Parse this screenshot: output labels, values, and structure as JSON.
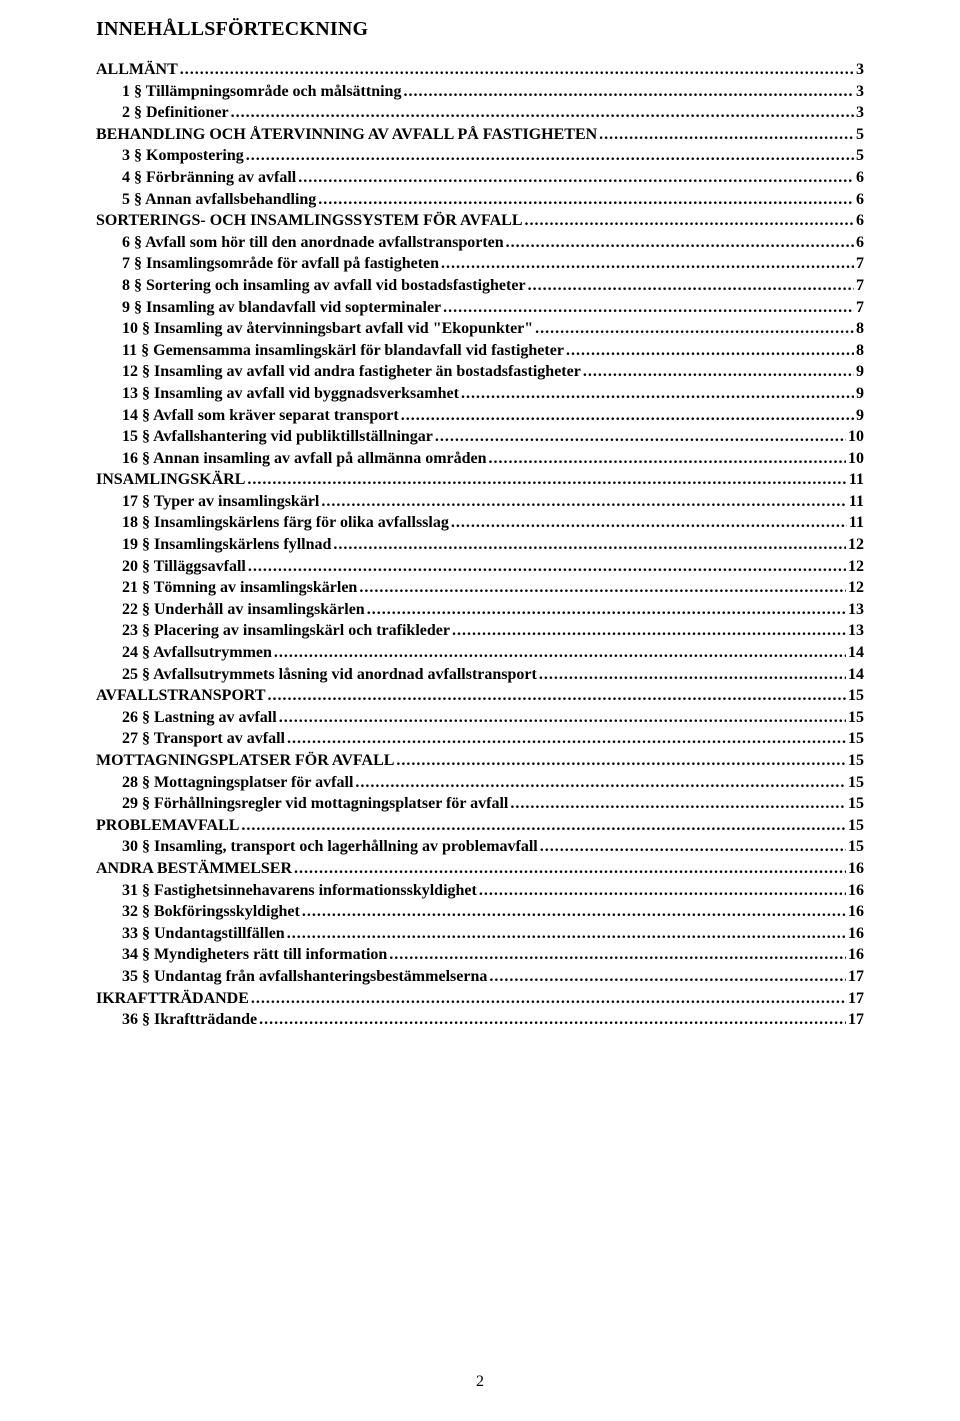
{
  "title": "INNEHÅLLSFÖRTECKNING",
  "page_number": "2",
  "toc": [
    {
      "level": 1,
      "label": "ALLMÄNT",
      "page": "3"
    },
    {
      "level": 2,
      "label": "1 § Tillämpningsområde och målsättning",
      "page": "3"
    },
    {
      "level": 2,
      "label": "2 § Definitioner",
      "page": "3"
    },
    {
      "level": 1,
      "label": "BEHANDLING OCH ÅTERVINNING AV AVFALL PÅ FASTIGHETEN",
      "page": "5"
    },
    {
      "level": 2,
      "label": "3 § Kompostering",
      "page": "5"
    },
    {
      "level": 2,
      "label": "4 § Förbränning av avfall",
      "page": "6"
    },
    {
      "level": 2,
      "label": "5 § Annan avfallsbehandling",
      "page": "6"
    },
    {
      "level": 1,
      "label": "SORTERINGS- OCH INSAMLINGSSYSTEM FÖR AVFALL",
      "page": "6"
    },
    {
      "level": 2,
      "label": "6 § Avfall som hör till den anordnade avfallstransporten",
      "page": "6"
    },
    {
      "level": 2,
      "label": "7 § Insamlingsområde för avfall på fastigheten",
      "page": "7"
    },
    {
      "level": 2,
      "label": "8 § Sortering och insamling av avfall vid bostadsfastigheter",
      "page": "7"
    },
    {
      "level": 2,
      "label": "9 § Insamling av blandavfall vid sopterminaler",
      "page": "7"
    },
    {
      "level": 2,
      "label": "10 § Insamling av återvinningsbart avfall vid \"Ekopunkter\"",
      "page": "8"
    },
    {
      "level": 2,
      "label": "11 § Gemensamma insamlingskärl för blandavfall vid fastigheter",
      "page": "8"
    },
    {
      "level": 2,
      "label": "12 § Insamling av avfall vid andra fastigheter än bostadsfastigheter",
      "page": "9"
    },
    {
      "level": 2,
      "label": "13 § Insamling av avfall vid byggnadsverksamhet",
      "page": "9"
    },
    {
      "level": 2,
      "label": "14 § Avfall som kräver separat transport",
      "page": "9"
    },
    {
      "level": 2,
      "label": "15 § Avfallshantering vid publiktillställningar",
      "page": "10"
    },
    {
      "level": 2,
      "label": "16 § Annan insamling av avfall på allmänna områden",
      "page": "10"
    },
    {
      "level": 1,
      "label": "INSAMLINGSKÄRL",
      "page": "11"
    },
    {
      "level": 2,
      "label": "17 § Typer av insamlingskärl",
      "page": "11"
    },
    {
      "level": 2,
      "label": "18 § Insamlingskärlens färg för olika avfallsslag",
      "page": "11"
    },
    {
      "level": 2,
      "label": "19 § Insamlingskärlens fyllnad",
      "page": "12"
    },
    {
      "level": 2,
      "label": "20 § Tilläggsavfall",
      "page": "12"
    },
    {
      "level": 2,
      "label": "21 § Tömning av insamlingskärlen",
      "page": "12"
    },
    {
      "level": 2,
      "label": "22 § Underhåll av insamlingskärlen",
      "page": "13"
    },
    {
      "level": 2,
      "label": "23 § Placering av insamlingskärl och trafikleder",
      "page": "13"
    },
    {
      "level": 2,
      "label": "24 § Avfallsutrymmen",
      "page": "14"
    },
    {
      "level": 2,
      "label": "25 § Avfallsutrymmets låsning vid anordnad avfallstransport",
      "page": "14"
    },
    {
      "level": 1,
      "label": "AVFALLSTRANSPORT",
      "page": "15"
    },
    {
      "level": 2,
      "label": "26 § Lastning av avfall",
      "page": "15"
    },
    {
      "level": 2,
      "label": "27 § Transport av avfall",
      "page": "15"
    },
    {
      "level": 1,
      "label": "MOTTAGNINGSPLATSER FÖR AVFALL",
      "page": "15"
    },
    {
      "level": 2,
      "label": "28 § Mottagningsplatser för avfall",
      "page": "15"
    },
    {
      "level": 2,
      "label": "29 § Förhållningsregler vid mottagningsplatser för avfall",
      "page": "15"
    },
    {
      "level": 1,
      "label": "PROBLEMAVFALL",
      "page": "15"
    },
    {
      "level": 2,
      "label": "30 § Insamling, transport och lagerhållning av problemavfall",
      "page": "15"
    },
    {
      "level": 1,
      "label": "ANDRA BESTÄMMELSER",
      "page": "16"
    },
    {
      "level": 2,
      "label": "31 § Fastighetsinnehavarens informationsskyldighet",
      "page": "16"
    },
    {
      "level": 2,
      "label": "32 § Bokföringsskyldighet",
      "page": "16"
    },
    {
      "level": 2,
      "label": "33 § Undantagstillfällen",
      "page": "16"
    },
    {
      "level": 2,
      "label": "34 § Myndigheters rätt till information",
      "page": "16"
    },
    {
      "level": 2,
      "label": "35 § Undantag från avfallshanteringsbestämmelserna",
      "page": "17"
    },
    {
      "level": 1,
      "label": "IKRAFTTRÄDANDE",
      "page": "17"
    },
    {
      "level": 2,
      "label": "36 § Ikraftträdande",
      "page": "17"
    }
  ]
}
